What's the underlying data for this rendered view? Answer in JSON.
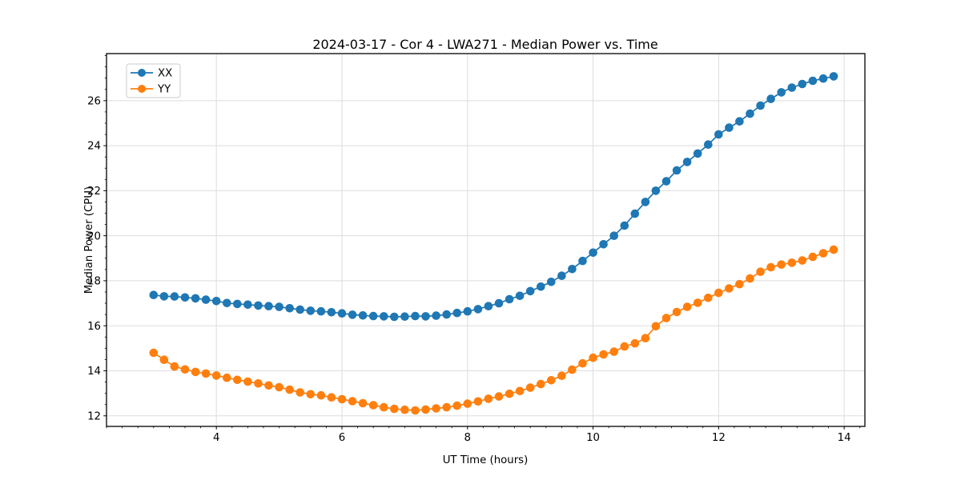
{
  "chart_data": {
    "type": "line",
    "title": "2024-03-17 - Cor 4 - LWA271 - Median Power vs. Time",
    "xlabel": "UT Time (hours)",
    "ylabel": "Median Power (CPU)",
    "xlim": [
      2.25,
      14.33
    ],
    "ylim": [
      11.53,
      28.09
    ],
    "xticks": [
      4,
      6,
      8,
      10,
      12,
      14
    ],
    "yticks": [
      12,
      14,
      16,
      18,
      20,
      22,
      24,
      26
    ],
    "x_minor_step": 0.25,
    "y_minor_step": 0.5,
    "grid": true,
    "grid_color": "#dddddd",
    "legend_position": "upper left",
    "marker": "o",
    "x": [
      3.0,
      3.167,
      3.333,
      3.5,
      3.667,
      3.833,
      4.0,
      4.167,
      4.333,
      4.5,
      4.667,
      4.833,
      5.0,
      5.167,
      5.333,
      5.5,
      5.667,
      5.833,
      6.0,
      6.167,
      6.333,
      6.5,
      6.667,
      6.833,
      7.0,
      7.167,
      7.333,
      7.5,
      7.667,
      7.833,
      8.0,
      8.167,
      8.333,
      8.5,
      8.667,
      8.833,
      9.0,
      9.167,
      9.333,
      9.5,
      9.667,
      9.833,
      10.0,
      10.167,
      10.333,
      10.5,
      10.667,
      10.833,
      11.0,
      11.167,
      11.333,
      11.5,
      11.667,
      11.833,
      12.0,
      12.167,
      12.333,
      12.5,
      12.667,
      12.833,
      13.0,
      13.167,
      13.333,
      13.5,
      13.667,
      13.833
    ],
    "series": [
      {
        "name": "XX",
        "color": "#1f77b4",
        "values": [
          17.37,
          17.31,
          17.3,
          17.26,
          17.22,
          17.16,
          17.1,
          17.01,
          16.97,
          16.94,
          16.9,
          16.87,
          16.84,
          16.78,
          16.72,
          16.67,
          16.64,
          16.6,
          16.55,
          16.49,
          16.46,
          16.43,
          16.42,
          16.4,
          16.41,
          16.43,
          16.42,
          16.45,
          16.5,
          16.57,
          16.64,
          16.74,
          16.87,
          17.0,
          17.18,
          17.33,
          17.54,
          17.74,
          17.95,
          18.22,
          18.52,
          18.88,
          19.25,
          19.62,
          20.0,
          20.45,
          20.98,
          21.5,
          22.0,
          22.42,
          22.9,
          23.28,
          23.65,
          24.05,
          24.5,
          24.8,
          25.08,
          25.42,
          25.78,
          26.08,
          26.37,
          26.58,
          26.74,
          26.88,
          26.98,
          27.08
        ]
      },
      {
        "name": "YY",
        "color": "#ff7f0e",
        "values": [
          14.8,
          14.49,
          14.19,
          14.06,
          13.95,
          13.88,
          13.79,
          13.69,
          13.6,
          13.52,
          13.44,
          13.35,
          13.27,
          13.16,
          13.04,
          12.96,
          12.91,
          12.82,
          12.74,
          12.65,
          12.56,
          12.47,
          12.38,
          12.31,
          12.27,
          12.24,
          12.28,
          12.33,
          12.38,
          12.45,
          12.54,
          12.64,
          12.76,
          12.86,
          12.98,
          13.1,
          13.25,
          13.41,
          13.58,
          13.78,
          14.05,
          14.33,
          14.58,
          14.73,
          14.85,
          15.08,
          15.22,
          15.45,
          15.98,
          16.34,
          16.61,
          16.84,
          17.02,
          17.24,
          17.46,
          17.66,
          17.85,
          18.1,
          18.4,
          18.6,
          18.72,
          18.8,
          18.9,
          19.06,
          19.22,
          19.38
        ]
      }
    ]
  }
}
